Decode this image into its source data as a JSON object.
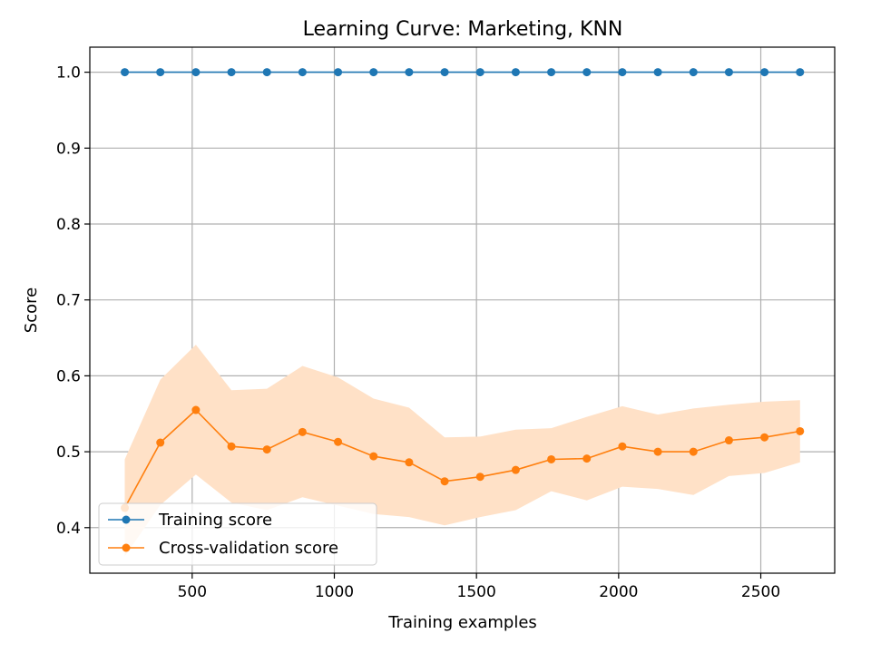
{
  "chart_data": {
    "type": "line",
    "title": "Learning Curve: Marketing, KNN",
    "xlabel": "Training examples",
    "ylabel": "Score",
    "xlim": [
      140,
      2760
    ],
    "ylim": [
      0.34,
      1.033
    ],
    "xticks": [
      500,
      1000,
      1500,
      2000,
      2500
    ],
    "yticks": [
      0.4,
      0.5,
      0.6,
      0.7,
      0.8,
      0.9,
      1.0
    ],
    "xtick_labels": [
      "500",
      "1000",
      "1500",
      "2000",
      "2500"
    ],
    "ytick_labels": [
      "0.4",
      "0.5",
      "0.6",
      "0.7",
      "0.8",
      "0.9",
      "1.0"
    ],
    "grid": true,
    "legend_position": "lower-left",
    "x": [
      263,
      388,
      513,
      638,
      763,
      888,
      1013,
      1138,
      1263,
      1388,
      1513,
      1638,
      1763,
      1888,
      2013,
      2138,
      2263,
      2388,
      2513,
      2638
    ],
    "series": [
      {
        "name": "Training score",
        "color": "#1f77b4",
        "values": [
          1,
          1,
          1,
          1,
          1,
          1,
          1,
          1,
          1,
          1,
          1,
          1,
          1,
          1,
          1,
          1,
          1,
          1,
          1,
          1
        ]
      },
      {
        "name": "Cross-validation score",
        "color": "#ff7f0e",
        "band_color": "#ffe1c7",
        "values": [
          0.426,
          0.512,
          0.555,
          0.507,
          0.503,
          0.526,
          0.513,
          0.494,
          0.486,
          0.461,
          0.467,
          0.476,
          0.49,
          0.491,
          0.507,
          0.5,
          0.5,
          0.515,
          0.519,
          0.527
        ],
        "band_upper": [
          0.49,
          0.595,
          0.641,
          0.581,
          0.583,
          0.613,
          0.598,
          0.57,
          0.558,
          0.519,
          0.52,
          0.529,
          0.531,
          0.546,
          0.56,
          0.549,
          0.557,
          0.562,
          0.566,
          0.568
        ],
        "band_lower": [
          0.362,
          0.43,
          0.47,
          0.433,
          0.423,
          0.44,
          0.429,
          0.418,
          0.414,
          0.403,
          0.414,
          0.423,
          0.448,
          0.436,
          0.454,
          0.451,
          0.443,
          0.468,
          0.472,
          0.486
        ]
      }
    ]
  }
}
